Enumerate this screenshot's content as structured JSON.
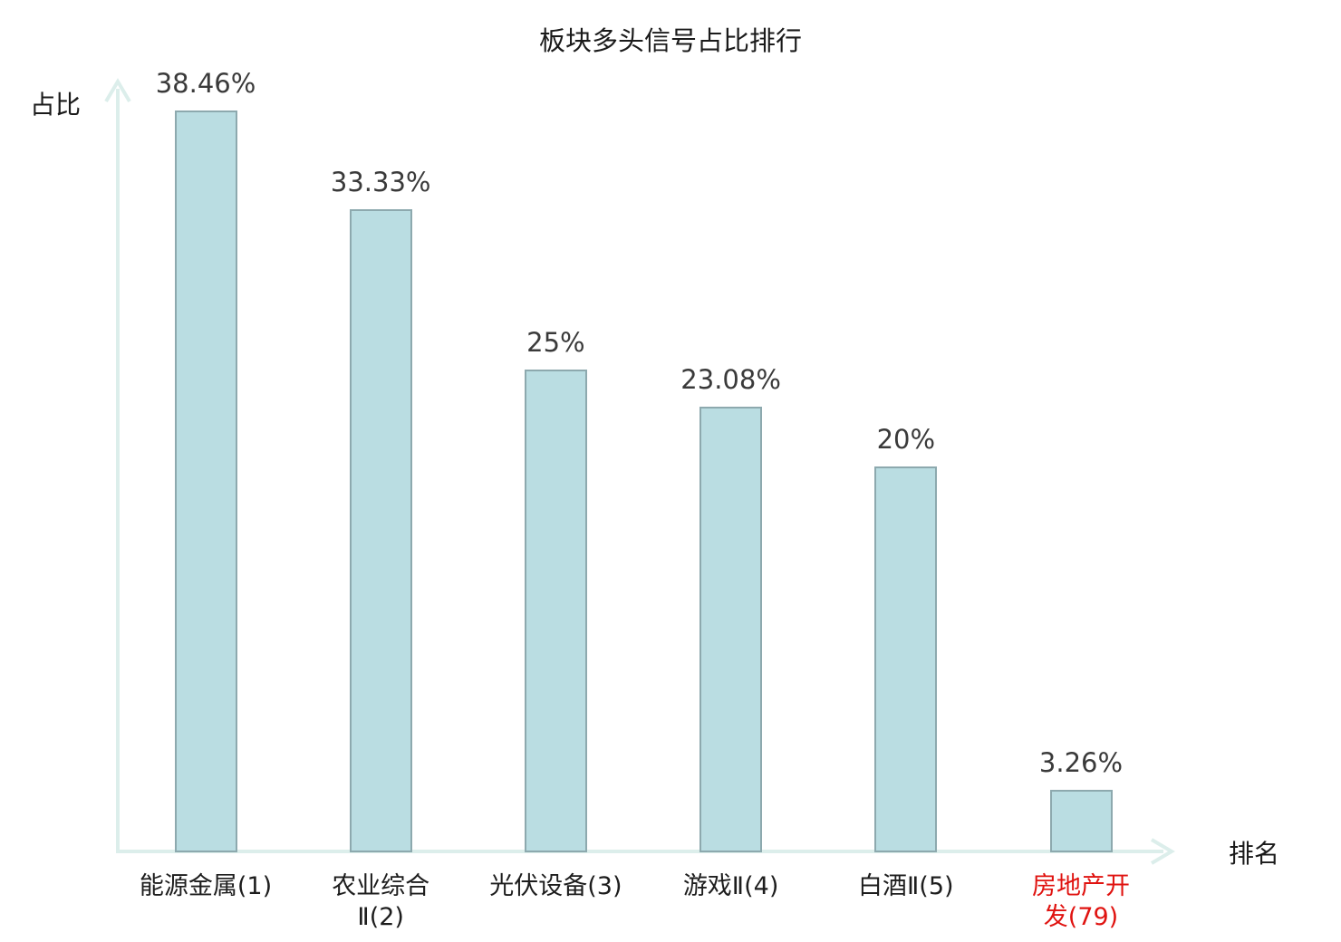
{
  "colors": {
    "bar_fill": "#badde2",
    "bar_border": "#8da9ae",
    "axis": "#dceeeb",
    "value_text": "#3a3a3a",
    "category_text": "#1d1d1d",
    "highlight_text": "#e01310",
    "title_text": "#1a1a1a"
  },
  "chart_data": {
    "type": "bar",
    "title": "板块多头信号占比排行",
    "xlabel": "排名",
    "ylabel": "占比",
    "ylim": [
      0,
      40
    ],
    "grid": false,
    "legend": "none",
    "categories": [
      "能源金属(1)",
      "农业综合Ⅱ(2)",
      "光伏设备(3)",
      "游戏Ⅱ(4)",
      "白酒Ⅱ(5)",
      "房地产开发(79)"
    ],
    "values": [
      38.46,
      33.33,
      25,
      23.08,
      20,
      3.26
    ],
    "value_labels": [
      "38.46%",
      "33.33%",
      "25%",
      "23.08%",
      "20%",
      "3.26%"
    ],
    "category_lines": [
      [
        "能源金属(1)"
      ],
      [
        "农业综合",
        "Ⅱ(2)"
      ],
      [
        "光伏设备(3)"
      ],
      [
        "游戏Ⅱ(4)"
      ],
      [
        "白酒Ⅱ(5)"
      ],
      [
        "房地产开",
        "发(79)"
      ]
    ],
    "highlight_index": 5,
    "bar_color": "#badde2",
    "highlight_label_color": "#e01310"
  }
}
